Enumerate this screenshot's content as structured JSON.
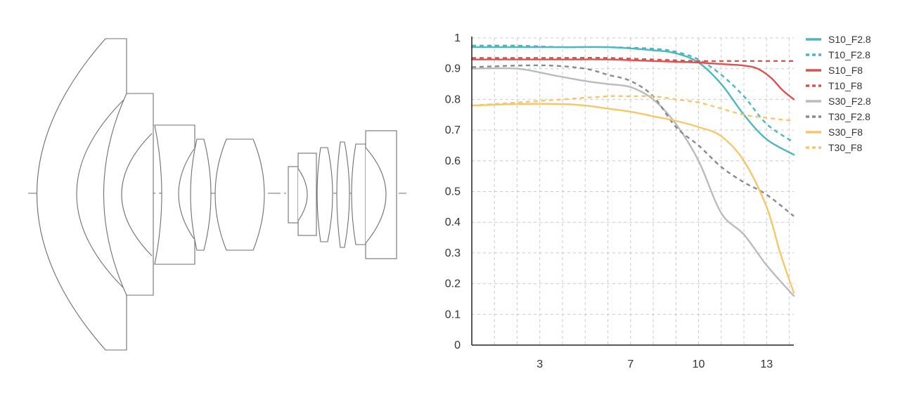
{
  "chart_data": {
    "type": "line",
    "title": "",
    "xlabel": "",
    "ylabel": "",
    "xlim": [
      0,
      14.2
    ],
    "ylim": [
      0,
      1
    ],
    "x_ticks": [
      3,
      7,
      10,
      13
    ],
    "y_ticks": [
      0,
      0.1,
      0.2,
      0.3,
      0.4,
      0.5,
      0.6,
      0.7,
      0.8,
      0.9,
      1
    ],
    "grid": true,
    "legend_position": "right",
    "series": [
      {
        "name": "S10_F2.8",
        "color": "#4db6bf",
        "dashed": false,
        "points": [
          [
            0,
            0.97
          ],
          [
            2,
            0.97
          ],
          [
            4,
            0.97
          ],
          [
            6,
            0.97
          ],
          [
            8,
            0.96
          ],
          [
            9,
            0.95
          ],
          [
            10,
            0.92
          ],
          [
            11,
            0.85
          ],
          [
            12,
            0.75
          ],
          [
            13,
            0.67
          ],
          [
            14.2,
            0.62
          ]
        ]
      },
      {
        "name": "T10_F2.8",
        "color": "#4db6bf",
        "dashed": true,
        "points": [
          [
            0,
            0.975
          ],
          [
            2,
            0.975
          ],
          [
            4,
            0.97
          ],
          [
            6,
            0.97
          ],
          [
            8,
            0.965
          ],
          [
            9,
            0.955
          ],
          [
            10,
            0.93
          ],
          [
            11,
            0.88
          ],
          [
            12,
            0.81
          ],
          [
            13,
            0.72
          ],
          [
            14.2,
            0.66
          ]
        ]
      },
      {
        "name": "S10_F8",
        "color": "#d9534f",
        "dashed": false,
        "points": [
          [
            0,
            0.93
          ],
          [
            2,
            0.93
          ],
          [
            4,
            0.93
          ],
          [
            6,
            0.93
          ],
          [
            8,
            0.925
          ],
          [
            10,
            0.92
          ],
          [
            11,
            0.915
          ],
          [
            12,
            0.91
          ],
          [
            12.6,
            0.9
          ],
          [
            13.2,
            0.87
          ],
          [
            13.7,
            0.83
          ],
          [
            14.2,
            0.8
          ]
        ]
      },
      {
        "name": "T10_F8",
        "color": "#d9534f",
        "dashed": true,
        "points": [
          [
            0,
            0.935
          ],
          [
            2,
            0.935
          ],
          [
            4,
            0.935
          ],
          [
            6,
            0.935
          ],
          [
            8,
            0.93
          ],
          [
            10,
            0.925
          ],
          [
            12,
            0.925
          ],
          [
            14.2,
            0.925
          ]
        ]
      },
      {
        "name": "S30_F2.8",
        "color": "#bbbbbb",
        "dashed": false,
        "points": [
          [
            0,
            0.9
          ],
          [
            2,
            0.9
          ],
          [
            3.5,
            0.88
          ],
          [
            5,
            0.86
          ],
          [
            6,
            0.85
          ],
          [
            7,
            0.84
          ],
          [
            8,
            0.8
          ],
          [
            9,
            0.72
          ],
          [
            10,
            0.6
          ],
          [
            11,
            0.43
          ],
          [
            12,
            0.36
          ],
          [
            13,
            0.26
          ],
          [
            14.2,
            0.16
          ]
        ]
      },
      {
        "name": "T30_F2.8",
        "color": "#8a8a8a",
        "dashed": true,
        "points": [
          [
            0,
            0.905
          ],
          [
            2,
            0.91
          ],
          [
            3.5,
            0.91
          ],
          [
            5,
            0.9
          ],
          [
            6,
            0.88
          ],
          [
            7,
            0.86
          ],
          [
            8,
            0.81
          ],
          [
            9,
            0.71
          ],
          [
            10,
            0.65
          ],
          [
            11,
            0.58
          ],
          [
            12,
            0.53
          ],
          [
            13,
            0.49
          ],
          [
            14.2,
            0.42
          ]
        ]
      },
      {
        "name": "S30_F8",
        "color": "#f5c76b",
        "dashed": false,
        "points": [
          [
            0,
            0.78
          ],
          [
            2,
            0.785
          ],
          [
            4,
            0.785
          ],
          [
            5,
            0.78
          ],
          [
            6,
            0.77
          ],
          [
            7,
            0.76
          ],
          [
            8,
            0.745
          ],
          [
            9,
            0.73
          ],
          [
            10,
            0.71
          ],
          [
            11,
            0.68
          ],
          [
            12,
            0.6
          ],
          [
            13,
            0.45
          ],
          [
            13.6,
            0.3
          ],
          [
            14.2,
            0.17
          ]
        ]
      },
      {
        "name": "T30_F8",
        "color": "#f5c76b",
        "dashed": true,
        "points": [
          [
            0,
            0.78
          ],
          [
            2,
            0.79
          ],
          [
            4,
            0.8
          ],
          [
            6,
            0.81
          ],
          [
            7,
            0.81
          ],
          [
            8,
            0.81
          ],
          [
            9,
            0.8
          ],
          [
            10,
            0.79
          ],
          [
            11,
            0.77
          ],
          [
            12,
            0.75
          ],
          [
            13,
            0.74
          ],
          [
            14.2,
            0.73
          ]
        ]
      }
    ]
  },
  "colors": {
    "axis": "#222222",
    "grid": "#c9c9c9",
    "text": "#333333",
    "lens_stroke": "#6f6f6f"
  }
}
